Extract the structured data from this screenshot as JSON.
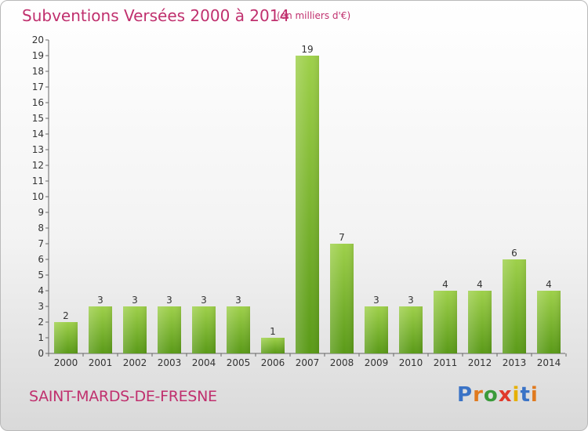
{
  "header": {
    "title": "Subventions Versées 2000 à 2014",
    "unit": "(en milliers d'€)"
  },
  "footer": {
    "commune": "SAINT-MARDS-DE-FRESNE",
    "logo": "Proxiti"
  },
  "colors": {
    "accent": "#c0306e",
    "bar_top": "#9ed04a",
    "bar_bottom": "#5a9a18",
    "logo_letters": [
      "#3a73c6",
      "#e07a1f",
      "#3a9a3a",
      "#e0392b",
      "#e6b000",
      "#3a73c6",
      "#e07a1f"
    ]
  },
  "chart_data": {
    "type": "bar",
    "title": "Subventions Versées 2000 à 2014",
    "subtitle": "(en milliers d'€)",
    "xlabel": "",
    "ylabel": "",
    "categories": [
      "2000",
      "2001",
      "2002",
      "2003",
      "2004",
      "2005",
      "2006",
      "2007",
      "2008",
      "2009",
      "2010",
      "2011",
      "2012",
      "2013",
      "2014"
    ],
    "values": [
      2,
      3,
      3,
      3,
      3,
      3,
      1,
      19,
      7,
      3,
      3,
      4,
      4,
      6,
      4
    ],
    "ylim": [
      0,
      20
    ],
    "yticks": [
      0,
      1,
      2,
      3,
      4,
      5,
      6,
      7,
      8,
      9,
      10,
      11,
      12,
      13,
      14,
      15,
      16,
      17,
      18,
      19,
      20
    ],
    "grid": false,
    "data_labels": true
  }
}
